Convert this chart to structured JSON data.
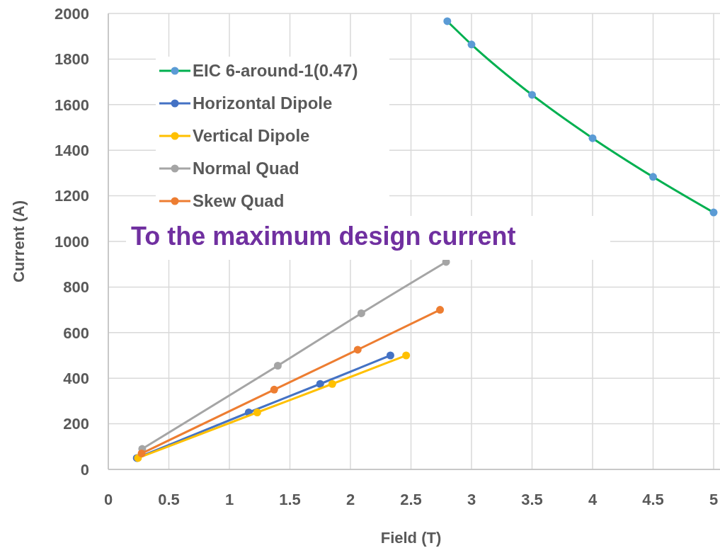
{
  "chart_data": {
    "type": "line",
    "xlabel": "Field (T)",
    "ylabel": "Current (A)",
    "xlim": [
      0,
      5
    ],
    "xticks": [
      0,
      0.5,
      1,
      1.5,
      2,
      2.5,
      3,
      3.5,
      4,
      4.5,
      5
    ],
    "ylim": [
      0,
      2000
    ],
    "yticks": [
      0,
      200,
      400,
      600,
      800,
      1000,
      1200,
      1400,
      1600,
      1800,
      2000
    ],
    "grid": true,
    "legend": "top left",
    "marker": "circle",
    "annotations": [
      "To the maximum design current"
    ],
    "series": [
      {
        "name": "EIC 6-around-1(0.47)",
        "color": "#00b050",
        "colors": [
          "#5b9bd5",
          "#5b9bd5",
          "#5b9bd5",
          "#5b9bd5",
          "#5b9bd5",
          "#5b9bd5"
        ],
        "x": [
          2.8,
          3,
          3.5,
          4,
          4.5,
          5
        ],
        "values": [
          1966,
          1864,
          1643,
          1453,
          1283,
          1127
        ]
      },
      {
        "name": "Horizontal Dipole",
        "color": "#4472c4",
        "x": [
          0.235,
          1.16,
          1.75,
          2.33
        ],
        "values": [
          50,
          250,
          375,
          500
        ]
      },
      {
        "name": "Vertical Dipole",
        "color": "#ffc000",
        "x": [
          0.245,
          1.23,
          1.85,
          2.46
        ],
        "values": [
          50,
          250,
          375,
          500
        ]
      },
      {
        "name": "Normal Quad",
        "color": "#a5a5a5",
        "x": [
          0.28,
          1.4,
          2.09,
          2.79
        ],
        "values": [
          90,
          455,
          685,
          910
        ]
      },
      {
        "name": "Skew Quad",
        "color": "#ed7d31",
        "x": [
          0.275,
          1.37,
          2.06,
          2.74
        ],
        "values": [
          70,
          350,
          525,
          700
        ]
      }
    ]
  }
}
